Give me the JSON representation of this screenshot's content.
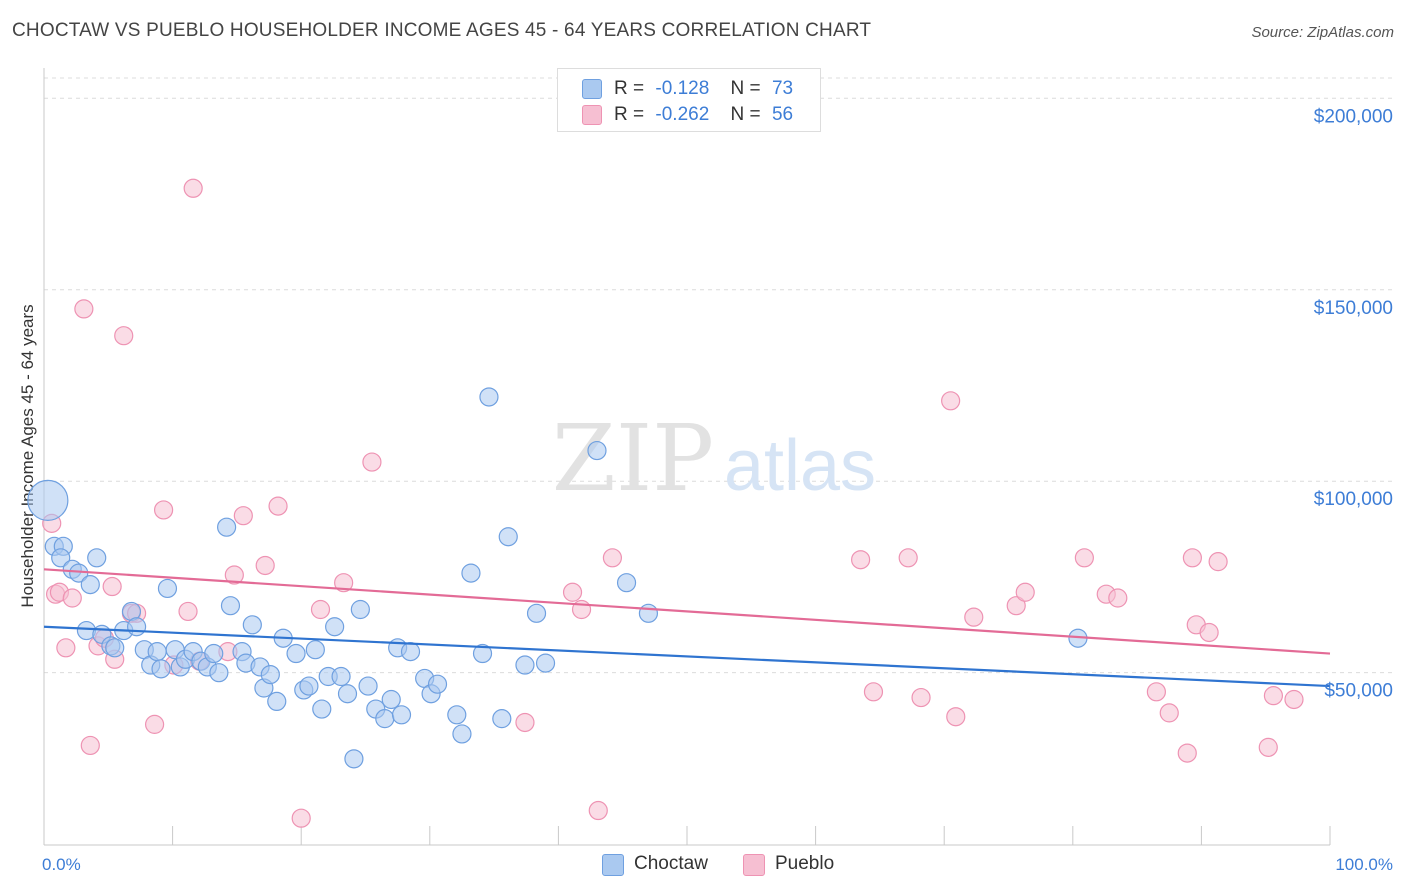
{
  "title": "CHOCTAW VS PUEBLO HOUSEHOLDER INCOME AGES 45 - 64 YEARS CORRELATION CHART",
  "source": "Source: ZipAtlas.com",
  "watermark": {
    "zip": "ZIP",
    "atlas": "atlas"
  },
  "colors": {
    "choctaw_fill": "#aac9f0",
    "choctaw_stroke": "#6fa0e0",
    "choctaw_line": "#2f74d0",
    "pueblo_fill": "#f6bfd2",
    "pueblo_stroke": "#ee93b3",
    "pueblo_line": "#e36b96",
    "axis_text": "#3d7dd6"
  },
  "legend": {
    "choctaw": {
      "r_label": "R =",
      "r_value": "-0.128",
      "n_label": "N =",
      "n_value": "73"
    },
    "pueblo": {
      "r_label": "R =",
      "r_value": "-0.262",
      "n_label": "N =",
      "n_value": "56"
    }
  },
  "bottom_legend": [
    "Choctaw",
    "Pueblo"
  ],
  "chart_data": {
    "type": "scatter",
    "title": "CHOCTAW VS PUEBLO HOUSEHOLDER INCOME AGES 45 - 64 YEARS CORRELATION CHART",
    "xlabel": "",
    "ylabel": "Householder Income Ages 45 - 64 years",
    "xlim": [
      0,
      100
    ],
    "ylim": [
      5000,
      210000
    ],
    "x_tick_labels": [
      "0.0%",
      "100.0%"
    ],
    "y_ticks": [
      {
        "value": 50000,
        "label": "$50,000"
      },
      {
        "value": 100000,
        "label": "$100,000"
      },
      {
        "value": 150000,
        "label": "$150,000"
      },
      {
        "value": 200000,
        "label": "$200,000"
      }
    ],
    "grid": true,
    "legend_position": "top-center",
    "series": [
      {
        "name": "Choctaw",
        "r": -0.128,
        "n": 73,
        "trend": {
          "x0": 0,
          "y0": 62000,
          "x1": 100,
          "y1": 46500
        },
        "points": [
          [
            0.3,
            95000
          ],
          [
            0.8,
            83000
          ],
          [
            1.5,
            83000
          ],
          [
            1.3,
            80000
          ],
          [
            2.2,
            77000
          ],
          [
            2.7,
            76000
          ],
          [
            3.6,
            73000
          ],
          [
            4.1,
            80000
          ],
          [
            3.3,
            61000
          ],
          [
            4.5,
            60000
          ],
          [
            5.2,
            57000
          ],
          [
            5.5,
            56500
          ],
          [
            6.2,
            61000
          ],
          [
            6.8,
            66000
          ],
          [
            7.2,
            62000
          ],
          [
            7.8,
            56000
          ],
          [
            8.3,
            52000
          ],
          [
            8.8,
            55500
          ],
          [
            9.1,
            51000
          ],
          [
            9.6,
            72000
          ],
          [
            10.2,
            56000
          ],
          [
            10.6,
            51500
          ],
          [
            11.0,
            53500
          ],
          [
            11.6,
            55500
          ],
          [
            12.2,
            53000
          ],
          [
            12.7,
            51500
          ],
          [
            13.2,
            55000
          ],
          [
            13.6,
            50000
          ],
          [
            14.2,
            88000
          ],
          [
            14.5,
            67500
          ],
          [
            15.4,
            55500
          ],
          [
            15.7,
            52500
          ],
          [
            16.2,
            62500
          ],
          [
            16.8,
            51500
          ],
          [
            17.1,
            46000
          ],
          [
            17.6,
            49500
          ],
          [
            18.1,
            42500
          ],
          [
            18.6,
            59000
          ],
          [
            19.6,
            55000
          ],
          [
            20.2,
            45500
          ],
          [
            20.6,
            46500
          ],
          [
            21.1,
            56000
          ],
          [
            21.6,
            40500
          ],
          [
            22.1,
            49000
          ],
          [
            22.6,
            62000
          ],
          [
            23.1,
            49000
          ],
          [
            23.6,
            44500
          ],
          [
            24.1,
            27500
          ],
          [
            24.6,
            66500
          ],
          [
            25.2,
            46500
          ],
          [
            25.8,
            40500
          ],
          [
            26.5,
            38000
          ],
          [
            27.0,
            43000
          ],
          [
            27.5,
            56500
          ],
          [
            27.8,
            39000
          ],
          [
            28.5,
            55500
          ],
          [
            29.6,
            48500
          ],
          [
            30.1,
            44500
          ],
          [
            30.6,
            47000
          ],
          [
            34.6,
            122000
          ],
          [
            32.1,
            39000
          ],
          [
            32.5,
            34000
          ],
          [
            33.2,
            76000
          ],
          [
            34.1,
            55000
          ],
          [
            35.6,
            38000
          ],
          [
            36.1,
            85500
          ],
          [
            37.4,
            52000
          ],
          [
            38.3,
            65500
          ],
          [
            39.0,
            52500
          ],
          [
            43.0,
            108000
          ],
          [
            45.3,
            73500
          ],
          [
            47.0,
            65500
          ],
          [
            80.4,
            59000
          ]
        ]
      },
      {
        "name": "Pueblo",
        "r": -0.262,
        "n": 56,
        "trend": {
          "x0": 0,
          "y0": 77000,
          "x1": 100,
          "y1": 55000
        },
        "points": [
          [
            0.6,
            89000
          ],
          [
            0.9,
            70500
          ],
          [
            1.2,
            71000
          ],
          [
            1.7,
            56500
          ],
          [
            2.2,
            69500
          ],
          [
            3.1,
            145000
          ],
          [
            3.6,
            31000
          ],
          [
            4.2,
            57000
          ],
          [
            4.7,
            59000
          ],
          [
            5.3,
            72500
          ],
          [
            5.5,
            53500
          ],
          [
            6.2,
            138000
          ],
          [
            6.8,
            65500
          ],
          [
            7.2,
            65500
          ],
          [
            8.6,
            36500
          ],
          [
            9.3,
            92500
          ],
          [
            10.1,
            52000
          ],
          [
            11.2,
            66000
          ],
          [
            11.6,
            176500
          ],
          [
            12.1,
            53000
          ],
          [
            14.3,
            55500
          ],
          [
            14.8,
            75500
          ],
          [
            15.5,
            91000
          ],
          [
            17.2,
            78000
          ],
          [
            18.2,
            93500
          ],
          [
            20.0,
            12000
          ],
          [
            21.5,
            66500
          ],
          [
            23.3,
            73500
          ],
          [
            25.5,
            105000
          ],
          [
            37.4,
            37000
          ],
          [
            41.1,
            71000
          ],
          [
            41.8,
            66500
          ],
          [
            43.1,
            14000
          ],
          [
            44.2,
            80000
          ],
          [
            63.5,
            79500
          ],
          [
            64.5,
            45000
          ],
          [
            67.2,
            80000
          ],
          [
            68.2,
            43500
          ],
          [
            70.5,
            121000
          ],
          [
            70.9,
            38500
          ],
          [
            72.3,
            64500
          ],
          [
            75.6,
            67500
          ],
          [
            76.3,
            71000
          ],
          [
            80.9,
            80000
          ],
          [
            82.6,
            70500
          ],
          [
            83.5,
            69500
          ],
          [
            86.5,
            45000
          ],
          [
            87.5,
            39500
          ],
          [
            88.9,
            29000
          ],
          [
            89.3,
            80000
          ],
          [
            89.6,
            62500
          ],
          [
            90.6,
            60500
          ],
          [
            91.3,
            79000
          ],
          [
            95.2,
            30500
          ],
          [
            95.6,
            44000
          ],
          [
            97.2,
            43000
          ]
        ]
      }
    ]
  }
}
